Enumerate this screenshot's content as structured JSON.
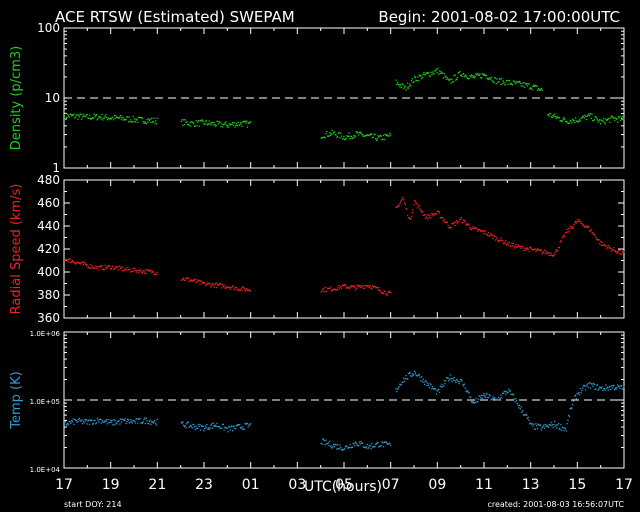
{
  "header": {
    "title": "ACE RTSW (Estimated) SWEPAM",
    "begin": "Begin: 2001-08-02 17:00:00UTC"
  },
  "footer": {
    "xlabel": "UTC(hours)",
    "start_doy": "start DOY: 214",
    "created": "created: 2001-08-03 16:56:07UTC"
  },
  "x_ticks": [
    "17",
    "19",
    "21",
    "23",
    "01",
    "03",
    "05",
    "07",
    "09",
    "11",
    "13",
    "15",
    "17"
  ],
  "colors": {
    "density": "#22cc22",
    "speed": "#ee2222",
    "temp": "#3399cc",
    "axes": "#ffffff",
    "background": "#000000"
  },
  "chart_data": [
    {
      "type": "scatter",
      "ylabel": "Density (p/cm3)",
      "scale": "log",
      "ylim": [
        1,
        100
      ],
      "y_ticks": [
        "100",
        "10",
        "1"
      ],
      "reference_line": 10,
      "x_unit": "hours since begin",
      "xlim": [
        0,
        24
      ],
      "segments": [
        {
          "x": [
            0,
            0.5,
            1,
            1.5,
            2,
            2.5,
            3,
            3.5,
            4
          ],
          "y": [
            5.7,
            5.6,
            5.4,
            5.5,
            5.3,
            5.2,
            5.0,
            4.9,
            4.8
          ]
        },
        {
          "x": [
            5,
            5.5,
            6,
            6.5,
            7,
            7.5,
            8
          ],
          "y": [
            4.6,
            4.4,
            4.5,
            4.3,
            4.2,
            4.4,
            4.3
          ]
        },
        {
          "x": [
            11,
            11.5,
            12,
            12.5,
            13,
            13.5,
            14
          ],
          "y": [
            3.0,
            3.2,
            2.8,
            3.1,
            2.9,
            2.7,
            3.0
          ]
        },
        {
          "x": [
            14.2,
            14.6,
            15,
            15.5,
            16,
            16.5,
            17,
            17.5,
            18,
            18.5,
            19,
            19.5,
            20,
            20.5
          ],
          "y": [
            17,
            14,
            19,
            22,
            25,
            17,
            23,
            20,
            22,
            18,
            17,
            16,
            15,
            13
          ]
        },
        {
          "x": [
            20.7,
            21,
            21.5,
            22,
            22.5,
            23,
            23.5,
            24
          ],
          "y": [
            6,
            5.5,
            4.8,
            5.0,
            5.6,
            4.6,
            5.2,
            5.0
          ]
        }
      ]
    },
    {
      "type": "scatter",
      "ylabel": "Radial Speed (km/s)",
      "scale": "linear",
      "ylim": [
        360,
        480
      ],
      "y_ticks": [
        "480",
        "460",
        "440",
        "420",
        "400",
        "380",
        "360"
      ],
      "x_unit": "hours since begin",
      "xlim": [
        0,
        24
      ],
      "segments": [
        {
          "x": [
            0,
            0.5,
            1,
            1.5,
            2,
            2.5,
            3,
            3.5,
            4
          ],
          "y": [
            412,
            409,
            406,
            404,
            405,
            403,
            402,
            401,
            400
          ]
        },
        {
          "x": [
            5,
            5.5,
            6,
            6.5,
            7,
            7.5,
            8
          ],
          "y": [
            395,
            393,
            390,
            389,
            388,
            386,
            385
          ]
        },
        {
          "x": [
            11,
            11.5,
            12,
            12.5,
            13,
            13.5,
            14
          ],
          "y": [
            385,
            386,
            388,
            387,
            389,
            385,
            381
          ]
        },
        {
          "x": [
            14.2,
            14.5,
            14.8,
            15,
            15.5,
            16,
            16.5,
            17,
            17.5,
            18,
            18.5,
            19,
            19.5,
            20,
            20.5,
            21,
            21.5,
            22,
            22.5,
            23,
            23.5,
            24
          ],
          "y": [
            455,
            465,
            445,
            462,
            448,
            452,
            440,
            446,
            438,
            435,
            430,
            425,
            422,
            420,
            418,
            416,
            435,
            445,
            438,
            425,
            420,
            416
          ]
        }
      ]
    },
    {
      "type": "scatter",
      "ylabel": "Temp (K)",
      "scale": "log",
      "ylim": [
        10000,
        1000000
      ],
      "y_ticks": [
        "1.0E+06",
        "1.0E+05",
        "1.0E+04"
      ],
      "reference_line": 100000,
      "x_unit": "hours since begin",
      "xlim": [
        0,
        24
      ],
      "segments": [
        {
          "x": [
            0,
            0.5,
            1,
            1.5,
            2,
            2.5,
            3,
            3.5,
            4
          ],
          "y": [
            45000,
            50000,
            48000,
            52000,
            47000,
            50000,
            49000,
            51000,
            48000
          ]
        },
        {
          "x": [
            5,
            5.5,
            6,
            6.5,
            7,
            7.5,
            8
          ],
          "y": [
            45000,
            42000,
            40000,
            44000,
            38000,
            41000,
            43000
          ]
        },
        {
          "x": [
            11,
            11.5,
            12,
            12.5,
            13,
            13.5,
            14
          ],
          "y": [
            25000,
            22000,
            20000,
            24000,
            21000,
            23000,
            22000
          ]
        },
        {
          "x": [
            14.2,
            14.5,
            15,
            15.5,
            16,
            16.5,
            17,
            17.5,
            18,
            18.5,
            19,
            19.5,
            20,
            20.5,
            21,
            21.5,
            22,
            22.5,
            23,
            23.5,
            24
          ],
          "y": [
            140000,
            200000,
            260000,
            180000,
            130000,
            220000,
            190000,
            90000,
            120000,
            100000,
            140000,
            80000,
            42000,
            40000,
            45000,
            38000,
            130000,
            170000,
            150000,
            160000,
            150000
          ]
        }
      ]
    }
  ]
}
